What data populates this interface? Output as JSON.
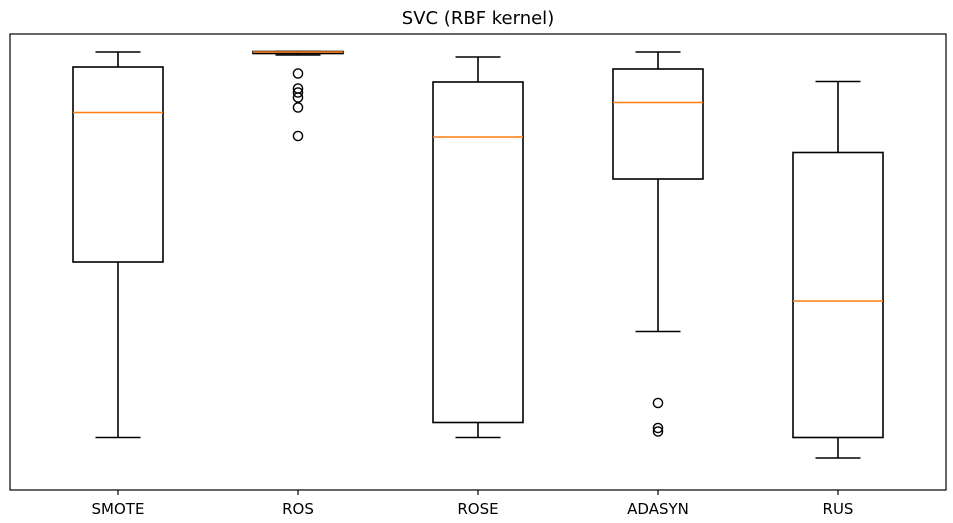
{
  "chart_data": {
    "type": "box",
    "title": "SVC (RBF kernel)",
    "xlabel": "",
    "ylabel": "",
    "categories": [
      "SMOTE",
      "ROS",
      "ROSE",
      "ADASYN",
      "RUS"
    ],
    "boxes": [
      {
        "label": "SMOTE",
        "whislo": 0.105,
        "q1": 0.456,
        "med": 0.755,
        "q3": 0.846,
        "whishi": 0.876,
        "fliers": []
      },
      {
        "label": "ROS",
        "whislo": 0.87,
        "q1": 0.873,
        "med": 0.876,
        "q3": 0.877,
        "whishi": 0.877,
        "fliers": [
          0.833,
          0.803,
          0.795,
          0.785,
          0.765,
          0.708
        ]
      },
      {
        "label": "ROSE",
        "whislo": 0.105,
        "q1": 0.135,
        "med": 0.706,
        "q3": 0.816,
        "whishi": 0.866,
        "fliers": []
      },
      {
        "label": "ADASYN",
        "whislo": 0.317,
        "q1": 0.622,
        "med": 0.775,
        "q3": 0.842,
        "whishi": 0.876,
        "fliers": [
          0.174,
          0.124,
          0.117
        ]
      },
      {
        "label": "RUS",
        "whislo": 0.064,
        "q1": 0.105,
        "med": 0.378,
        "q3": 0.675,
        "whishi": 0.817,
        "fliers": []
      }
    ],
    "ylim": [
      0,
      0.912
    ],
    "y_ticks_visible": false,
    "grid": false,
    "colors": {
      "box": "#000000",
      "median": "#ff7f0e",
      "background": "#ffffff"
    }
  }
}
